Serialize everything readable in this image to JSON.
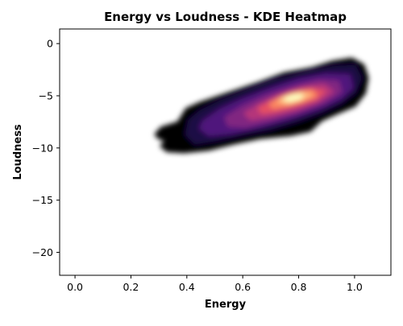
{
  "chart_data": {
    "type": "heatmap",
    "title": "Energy vs Loudness - KDE Heatmap",
    "xlabel": "Energy",
    "ylabel": "Loudness",
    "xlim": [
      -0.055,
      1.13
    ],
    "ylim": [
      -22.2,
      1.4
    ],
    "x_ticks": [
      0.0,
      0.2,
      0.4,
      0.6,
      0.8,
      1.0
    ],
    "x_tick_labels": [
      "0.0",
      "0.2",
      "0.4",
      "0.6",
      "0.8",
      "1.0"
    ],
    "y_ticks": [
      0,
      -5,
      -10,
      -15,
      -20
    ],
    "y_tick_labels": [
      "0",
      "−5",
      "−10",
      "−15",
      "−20"
    ],
    "colormap": "magma",
    "grid": false,
    "levels": [
      {
        "level": 1,
        "color": "#000004",
        "polygon": [
          [
            0.29,
            -8.7
          ],
          [
            0.31,
            -8.1
          ],
          [
            0.37,
            -7.6
          ],
          [
            0.4,
            -6.3
          ],
          [
            0.45,
            -5.7
          ],
          [
            0.55,
            -4.8
          ],
          [
            0.65,
            -3.9
          ],
          [
            0.75,
            -2.9
          ],
          [
            0.85,
            -2.4
          ],
          [
            0.92,
            -1.8
          ],
          [
            0.99,
            -1.5
          ],
          [
            1.03,
            -2.1
          ],
          [
            1.045,
            -3.3
          ],
          [
            1.035,
            -4.7
          ],
          [
            1.0,
            -5.9
          ],
          [
            0.93,
            -6.7
          ],
          [
            0.88,
            -7.3
          ],
          [
            0.84,
            -8.3
          ],
          [
            0.77,
            -8.7
          ],
          [
            0.66,
            -9.0
          ],
          [
            0.57,
            -9.5
          ],
          [
            0.48,
            -10.1
          ],
          [
            0.39,
            -10.35
          ],
          [
            0.33,
            -10.25
          ],
          [
            0.31,
            -9.8
          ],
          [
            0.33,
            -9.3
          ],
          [
            0.3,
            -9.0
          ]
        ]
      },
      {
        "level": 2,
        "color": "#1c1044",
        "polygon": [
          [
            0.41,
            -7.4
          ],
          [
            0.45,
            -6.5
          ],
          [
            0.52,
            -5.6
          ],
          [
            0.62,
            -4.6
          ],
          [
            0.72,
            -3.6
          ],
          [
            0.83,
            -2.9
          ],
          [
            0.93,
            -2.3
          ],
          [
            1.0,
            -2.2
          ],
          [
            1.02,
            -3.3
          ],
          [
            1.0,
            -4.6
          ],
          [
            0.95,
            -5.6
          ],
          [
            0.88,
            -6.5
          ],
          [
            0.8,
            -7.3
          ],
          [
            0.7,
            -8.1
          ],
          [
            0.6,
            -8.6
          ],
          [
            0.5,
            -9.2
          ],
          [
            0.43,
            -9.5
          ],
          [
            0.4,
            -8.7
          ]
        ]
      },
      {
        "level": 3,
        "color": "#4f127b",
        "polygon": [
          [
            0.46,
            -7.5
          ],
          [
            0.52,
            -6.4
          ],
          [
            0.6,
            -5.4
          ],
          [
            0.7,
            -4.4
          ],
          [
            0.8,
            -3.5
          ],
          [
            0.9,
            -3.0
          ],
          [
            0.98,
            -3.1
          ],
          [
            0.99,
            -4.2
          ],
          [
            0.95,
            -5.2
          ],
          [
            0.87,
            -6.2
          ],
          [
            0.77,
            -7.1
          ],
          [
            0.66,
            -7.9
          ],
          [
            0.56,
            -8.5
          ],
          [
            0.48,
            -8.7
          ],
          [
            0.45,
            -8.1
          ]
        ]
      },
      {
        "level": 4,
        "color": "#812581",
        "polygon": [
          [
            0.54,
            -7.1
          ],
          [
            0.6,
            -6.1
          ],
          [
            0.68,
            -5.1
          ],
          [
            0.78,
            -4.2
          ],
          [
            0.87,
            -3.6
          ],
          [
            0.94,
            -3.7
          ],
          [
            0.95,
            -4.6
          ],
          [
            0.89,
            -5.6
          ],
          [
            0.8,
            -6.5
          ],
          [
            0.7,
            -7.3
          ],
          [
            0.61,
            -7.9
          ],
          [
            0.55,
            -7.8
          ]
        ]
      },
      {
        "level": 5,
        "color": "#b5367a",
        "polygon": [
          [
            0.61,
            -6.7
          ],
          [
            0.66,
            -5.9
          ],
          [
            0.73,
            -5.0
          ],
          [
            0.81,
            -4.3
          ],
          [
            0.89,
            -4.0
          ],
          [
            0.92,
            -4.6
          ],
          [
            0.87,
            -5.5
          ],
          [
            0.79,
            -6.3
          ],
          [
            0.7,
            -6.9
          ],
          [
            0.63,
            -7.2
          ]
        ]
      },
      {
        "level": 6,
        "color": "#e55064",
        "polygon": [
          [
            0.66,
            -6.2
          ],
          [
            0.71,
            -5.5
          ],
          [
            0.77,
            -4.8
          ],
          [
            0.84,
            -4.4
          ],
          [
            0.89,
            -4.6
          ],
          [
            0.86,
            -5.3
          ],
          [
            0.79,
            -5.9
          ],
          [
            0.72,
            -6.4
          ],
          [
            0.67,
            -6.6
          ]
        ]
      },
      {
        "level": 7,
        "color": "#fb8761",
        "polygon": [
          [
            0.7,
            -5.8
          ],
          [
            0.74,
            -5.2
          ],
          [
            0.8,
            -4.7
          ],
          [
            0.85,
            -4.6
          ],
          [
            0.86,
            -5.0
          ],
          [
            0.81,
            -5.5
          ],
          [
            0.75,
            -5.9
          ],
          [
            0.71,
            -6.1
          ]
        ]
      },
      {
        "level": 8,
        "color": "#febb81",
        "polygon": [
          [
            0.73,
            -5.5
          ],
          [
            0.77,
            -5.0
          ],
          [
            0.81,
            -4.8
          ],
          [
            0.84,
            -4.9
          ],
          [
            0.81,
            -5.3
          ],
          [
            0.76,
            -5.7
          ]
        ]
      },
      {
        "level": 9,
        "color": "#fcfdbf",
        "polygon": [
          [
            0.75,
            -5.3
          ],
          [
            0.78,
            -5.0
          ],
          [
            0.81,
            -4.95
          ],
          [
            0.805,
            -5.2
          ],
          [
            0.77,
            -5.45
          ]
        ]
      }
    ]
  }
}
